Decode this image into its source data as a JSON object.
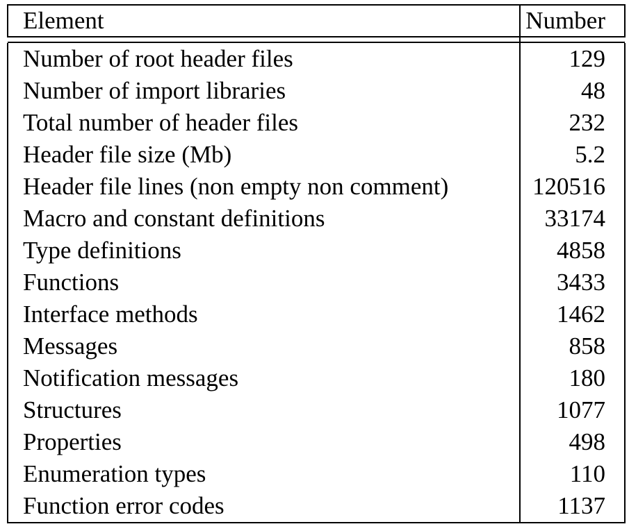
{
  "table": {
    "headers": {
      "element": "Element",
      "number": "Number"
    },
    "rows": [
      {
        "element": "Number of root header files",
        "number": "129"
      },
      {
        "element": "Number of import libraries",
        "number": "48"
      },
      {
        "element": "Total number of header files",
        "number": "232"
      },
      {
        "element": "Header file size (Mb)",
        "number": "5.2"
      },
      {
        "element": "Header file lines (non empty non comment)",
        "number": "120516"
      },
      {
        "element": "Macro and constant definitions",
        "number": "33174"
      },
      {
        "element": "Type definitions",
        "number": "4858"
      },
      {
        "element": "Functions",
        "number": "3433"
      },
      {
        "element": "Interface methods",
        "number": "1462"
      },
      {
        "element": "Messages",
        "number": "858"
      },
      {
        "element": "Notification messages",
        "number": "180"
      },
      {
        "element": "Structures",
        "number": "1077"
      },
      {
        "element": "Properties",
        "number": "498"
      },
      {
        "element": "Enumeration types",
        "number": "110"
      },
      {
        "element": "Function error codes",
        "number": "1137"
      }
    ]
  }
}
